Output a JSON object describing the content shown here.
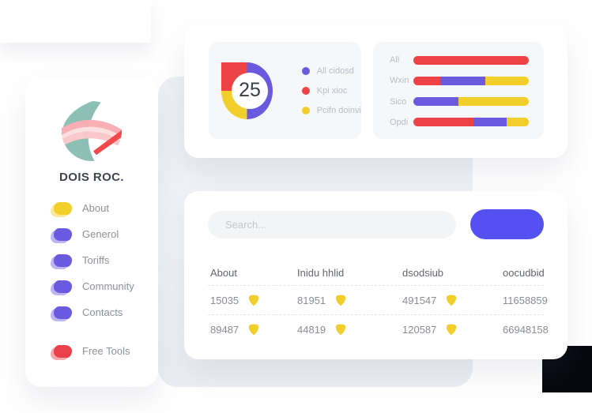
{
  "colors": {
    "accent_purple": "#6A5AE0",
    "accent_red": "#ED4347",
    "accent_yellow": "#F2CE2B",
    "menu_red": "#E8414B",
    "button_indigo": "#5450F2",
    "logo_teal": "#8CC0B4",
    "logo_navy": "#1D2445",
    "logo_pink": "#F7AFB4"
  },
  "sidebar": {
    "brand_name": "DOIS ROC.",
    "items": [
      {
        "label": "About",
        "color": "#F2CE2B"
      },
      {
        "label": "Generol",
        "color": "#6A5AE0"
      },
      {
        "label": "Toriffs",
        "color": "#6A5AE0"
      },
      {
        "label": "Community",
        "color": "#6A5AE0"
      },
      {
        "label": "Contacts",
        "color": "#6A5AE0"
      }
    ],
    "tools_item": {
      "label": "Free Tools",
      "color": "#E8414B"
    }
  },
  "top_card": {
    "donut": {
      "value": "25",
      "ring": [
        {
          "color": "#6A5AE0",
          "pct": 50
        },
        {
          "color": "#F2CE2B",
          "pct": 25
        },
        {
          "color": "#ED4347",
          "pct": 25
        }
      ],
      "legend": [
        {
          "label": "All cidosd",
          "color": "#6A5AE0"
        },
        {
          "label": "Kpi xioc",
          "color": "#ED4347"
        },
        {
          "label": "Pcifn doinvi",
          "color": "#F2CE2B"
        }
      ]
    },
    "bars": {
      "rows": [
        {
          "label": "All",
          "segments": [
            {
              "color": "#ED4347",
              "pct": 100
            }
          ]
        },
        {
          "label": "Wxin",
          "segments": [
            {
              "color": "#ED4347",
              "pct": 23
            },
            {
              "color": "#6A5AE0",
              "pct": 39
            },
            {
              "color": "#F2CE2B",
              "pct": 38
            }
          ]
        },
        {
          "label": "Sico",
          "segments": [
            {
              "color": "#6A5AE0",
              "pct": 39
            },
            {
              "color": "#F2CE2B",
              "pct": 61
            }
          ]
        },
        {
          "label": "Opdi",
          "segments": [
            {
              "color": "#ED4347",
              "pct": 52
            },
            {
              "color": "#6A5AE0",
              "pct": 29
            },
            {
              "color": "#F2CE2B",
              "pct": 19
            }
          ]
        }
      ]
    }
  },
  "bottom_card": {
    "search": {
      "placeholder": "Search..."
    },
    "button": {
      "label": "",
      "color": "#5450F2"
    },
    "table": {
      "headers": [
        "About",
        "Inidu hhlid",
        "dsodsiub",
        "oocudbid"
      ],
      "badge_color": "#F2CE2B",
      "rows": [
        [
          "15035",
          "81951",
          "491547",
          "11658859"
        ],
        [
          "89487",
          "44819",
          "120587",
          "66948158"
        ]
      ]
    }
  },
  "chart_data": [
    {
      "type": "pie",
      "title": "",
      "labels": [
        "All cidosd",
        "Kpi xioc",
        "Pcifn doinvi"
      ],
      "values": [
        50,
        25,
        25
      ],
      "colors": [
        "#6A5AE0",
        "#ED4347",
        "#F2CE2B"
      ],
      "center_value": "25",
      "legend_position": "right"
    },
    {
      "type": "bar",
      "orientation": "horizontal",
      "stacked": true,
      "categories": [
        "All",
        "Wxin",
        "Sico",
        "Opdi"
      ],
      "series": [
        {
          "name": "red",
          "values": [
            100,
            23,
            0,
            52
          ]
        },
        {
          "name": "purple",
          "values": [
            0,
            39,
            39,
            29
          ]
        },
        {
          "name": "yellow",
          "values": [
            0,
            38,
            61,
            19
          ]
        }
      ],
      "xlim": [
        0,
        100
      ],
      "grid": false,
      "legend_position": "none"
    }
  ]
}
